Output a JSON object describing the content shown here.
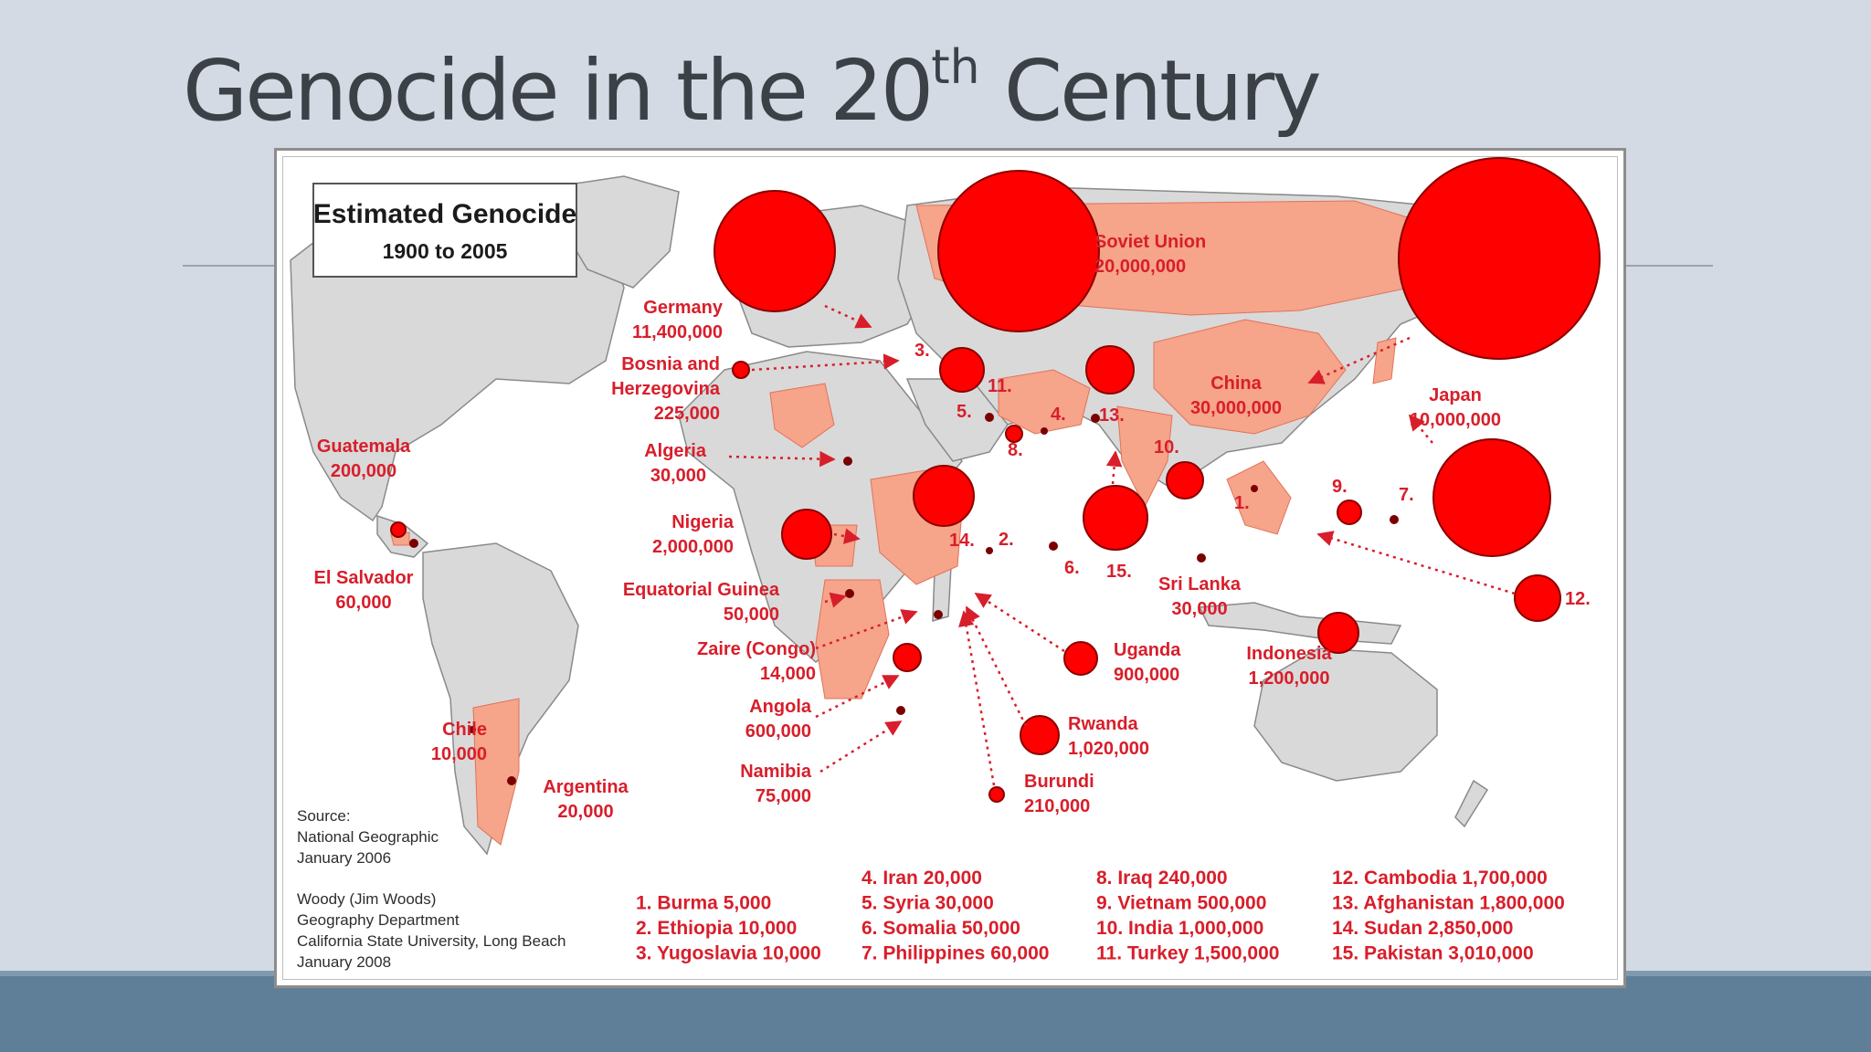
{
  "slide": {
    "title_main": "Genocide in the 20",
    "title_sup": "th",
    "title_end": " Century"
  },
  "legend": {
    "title": "Estimated Genocide",
    "subtitle": "1900 to 2005"
  },
  "source": {
    "line1": "Source:",
    "line2": "National Geographic",
    "line3": "January 2006"
  },
  "credit": {
    "line1": "Woody (Jim Woods)",
    "line2": "Geography Department",
    "line3": "California State University, Long Beach",
    "line4": "January 2008"
  },
  "colors": {
    "marker": "#ff0000",
    "country_fill": "#f6a48a",
    "land": "#d9d9d9",
    "label": "#d81e2a"
  },
  "map_labels": {
    "soviet_union": {
      "name": "Soviet Union",
      "value": "20,000,000"
    },
    "germany": {
      "name": "Germany",
      "value": "11,400,000"
    },
    "bosnia": {
      "line1": "Bosnia and",
      "line2": "Herzegovina",
      "value": "225,000"
    },
    "china": {
      "name": "China",
      "value": "30,000,000"
    },
    "japan": {
      "name": "Japan",
      "value": "10,000,000"
    },
    "guatemala": {
      "name": "Guatemala",
      "value": "200,000"
    },
    "algeria": {
      "name": "Algeria",
      "value": "30,000"
    },
    "nigeria": {
      "name": "Nigeria",
      "value": "2,000,000"
    },
    "el_salvador": {
      "name": "El Salvador",
      "value": "60,000"
    },
    "equatorial_guinea": {
      "name": "Equatorial Guinea",
      "value": "50,000"
    },
    "zaire": {
      "name": "Zaire (Congo)",
      "value": "14,000"
    },
    "angola": {
      "name": "Angola",
      "value": "600,000"
    },
    "namibia": {
      "name": "Namibia",
      "value": "75,000"
    },
    "chile": {
      "name": "Chile",
      "value": "10,000"
    },
    "argentina": {
      "name": "Argentina",
      "value": "20,000"
    },
    "uganda": {
      "name": "Uganda",
      "value": "900,000"
    },
    "rwanda": {
      "name": "Rwanda",
      "value": "1,020,000"
    },
    "burundi": {
      "name": "Burundi",
      "value": "210,000"
    },
    "sri_lanka": {
      "name": "Sri Lanka",
      "value": "30,000"
    },
    "indonesia": {
      "name": "Indonesia",
      "value": "1,200,000"
    }
  },
  "number_markers": [
    "1.",
    "2.",
    "3.",
    "4.",
    "5.",
    "6.",
    "7.",
    "8.",
    "9.",
    "10.",
    "11.",
    "12.",
    "13.",
    "14.",
    "15."
  ],
  "numbered_list": [
    {
      "num": "1.",
      "country": "Burma",
      "value": "5,000"
    },
    {
      "num": "2.",
      "country": "Ethiopia",
      "value": "10,000"
    },
    {
      "num": "3.",
      "country": "Yugoslavia",
      "value": "10,000"
    },
    {
      "num": "4.",
      "country": "Iran",
      "value": "20,000"
    },
    {
      "num": "5.",
      "country": "Syria",
      "value": "30,000"
    },
    {
      "num": "6.",
      "country": "Somalia",
      "value": "50,000"
    },
    {
      "num": "7.",
      "country": "Philippines",
      "value": "60,000"
    },
    {
      "num": "8.",
      "country": "Iraq",
      "value": "240,000"
    },
    {
      "num": "9.",
      "country": "Vietnam",
      "value": "500,000"
    },
    {
      "num": "10.",
      "country": "India",
      "value": "1,000,000"
    },
    {
      "num": "11.",
      "country": "Turkey",
      "value": "1,500,000"
    },
    {
      "num": "12.",
      "country": "Cambodia",
      "value": "1,700,000"
    },
    {
      "num": "13.",
      "country": "Afghanistan",
      "value": "1,800,000"
    },
    {
      "num": "14.",
      "country": "Sudan",
      "value": "2,850,000"
    },
    {
      "num": "15.",
      "country": "Pakistan",
      "value": "3,010,000"
    }
  ]
}
